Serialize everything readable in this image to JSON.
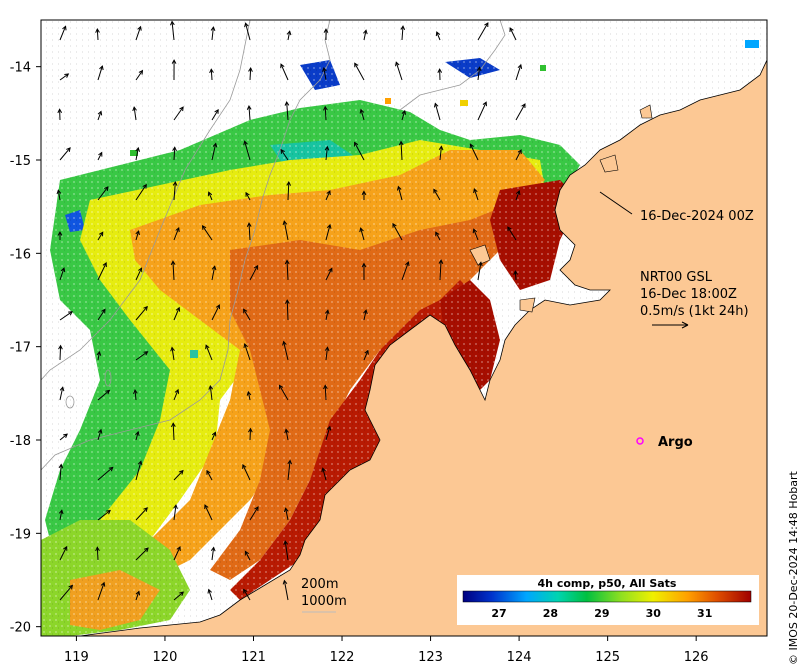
{
  "map": {
    "x_ticks": [
      "119",
      "120",
      "121",
      "122",
      "123",
      "124",
      "125",
      "126"
    ],
    "y_ticks": [
      "-14",
      "-15",
      "-16",
      "-17",
      "-18",
      "-19",
      "-20"
    ],
    "lon_range": [
      118.6,
      126.8
    ],
    "lat_range": [
      -20.1,
      -13.5
    ],
    "land_color": "#fcc894",
    "nodata_color": "#ffffff"
  },
  "annotations": {
    "date_label": "16-Dec-2024 00Z",
    "current_product": "NRT00 GSL",
    "current_time": "16-Dec 18:00Z",
    "current_scale": "0.5m/s (1kt 24h)",
    "argo_label": "Argo",
    "contour_200": "200m",
    "contour_1000": "1000m"
  },
  "colorbar": {
    "title": "4h comp, p50, All Sats",
    "ticks": [
      "27",
      "28",
      "29",
      "30",
      "31"
    ],
    "range": [
      26.3,
      31.9
    ],
    "colors": [
      "#00007f",
      "#0033cc",
      "#00a6ff",
      "#00d4b0",
      "#00c040",
      "#90e020",
      "#f0f000",
      "#ffa000",
      "#e05000",
      "#a00000"
    ]
  },
  "copyright": "© IMOS 20-Dec-2024 14:48 Hobart"
}
